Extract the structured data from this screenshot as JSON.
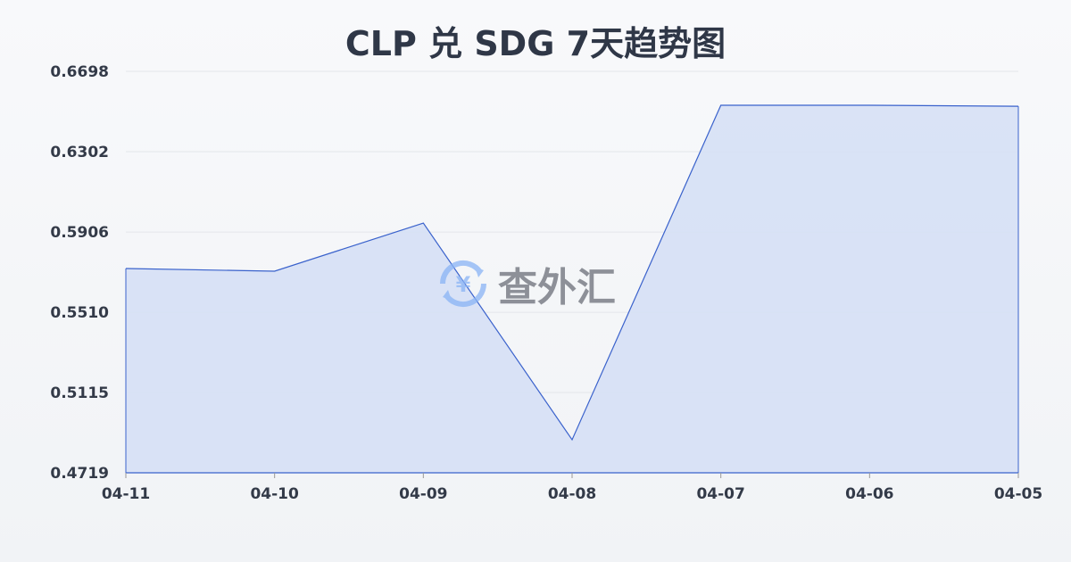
{
  "chart_data": {
    "type": "area",
    "title": "CLP 兑 SDG 7天趋势图",
    "categories": [
      "04-11",
      "04-10",
      "04-09",
      "04-08",
      "04-07",
      "04-06",
      "04-05"
    ],
    "values": [
      0.5726,
      0.5713,
      0.595,
      0.4882,
      0.6531,
      0.6531,
      0.6526
    ],
    "yticks": [
      "0.4719",
      "0.5115",
      "0.5510",
      "0.5906",
      "0.6302",
      "0.6698"
    ],
    "ylim": [
      0.4719,
      0.6698
    ],
    "grid": true,
    "line_color": "#3a62cc",
    "fill_color": "#d6e0f5"
  },
  "watermark": {
    "text": "查外汇",
    "icon": "currency-exchange-icon"
  }
}
